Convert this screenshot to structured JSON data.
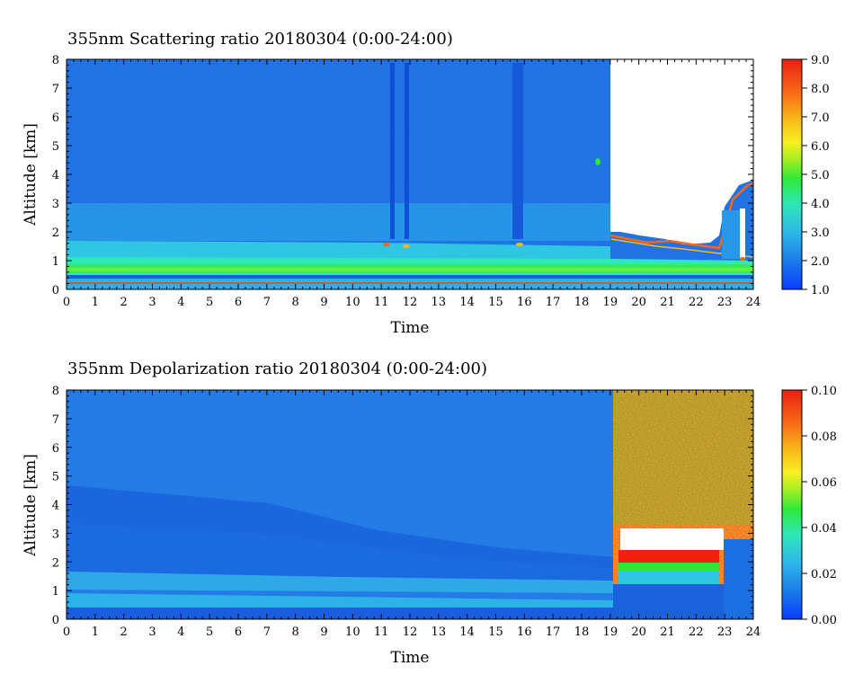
{
  "chart_data": [
    {
      "type": "heatmap",
      "title": "355nm Scattering ratio  20180304 (0:00-24:00)",
      "xlabel": "Time",
      "ylabel": "Altitude [km]",
      "xlim": [
        0,
        24
      ],
      "ylim": [
        0,
        8
      ],
      "x_ticks": [
        "0",
        "1",
        "2",
        "3",
        "4",
        "5",
        "6",
        "7",
        "8",
        "9",
        "10",
        "11",
        "12",
        "13",
        "14",
        "15",
        "16",
        "17",
        "18",
        "19",
        "20",
        "21",
        "22",
        "23",
        "24"
      ],
      "y_ticks": [
        "0",
        "1",
        "2",
        "3",
        "4",
        "5",
        "6",
        "7",
        "8"
      ],
      "colorbar": {
        "range": [
          1.0,
          9.0
        ],
        "ticks": [
          "1.0",
          "2.0",
          "3.0",
          "4.0",
          "5.0",
          "6.0",
          "7.0",
          "8.0",
          "9.0"
        ]
      }
    },
    {
      "type": "heatmap",
      "title": "355nm Depolarization ratio  20180304 (0:00-24:00)",
      "xlabel": "Time",
      "ylabel": "Altitude [km]",
      "xlim": [
        0,
        24
      ],
      "ylim": [
        0,
        8
      ],
      "x_ticks": [
        "0",
        "1",
        "2",
        "3",
        "4",
        "5",
        "6",
        "7",
        "8",
        "9",
        "10",
        "11",
        "12",
        "13",
        "14",
        "15",
        "16",
        "17",
        "18",
        "19",
        "20",
        "21",
        "22",
        "23",
        "24"
      ],
      "y_ticks": [
        "0",
        "1",
        "2",
        "3",
        "4",
        "5",
        "6",
        "7",
        "8"
      ],
      "colorbar": {
        "range": [
          0.0,
          0.1
        ],
        "ticks": [
          "0.00",
          "0.02",
          "0.04",
          "0.06",
          "0.08",
          "0.10"
        ]
      }
    }
  ],
  "colormap": [
    "#0a3cff",
    "#1a7ae8",
    "#2fb8e8",
    "#2ee8b8",
    "#2ee838",
    "#b8f020",
    "#f8f020",
    "#f8b818",
    "#f86818",
    "#e82010"
  ]
}
